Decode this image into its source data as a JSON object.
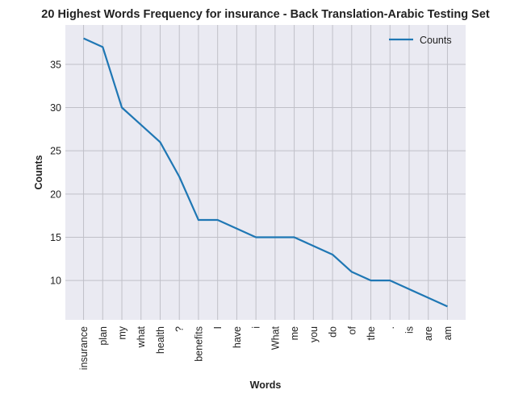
{
  "chart_data": {
    "type": "line",
    "title": "20 Highest Words Frequency for insurance - Back Translation-Arabic Testing Set",
    "xlabel": "Words",
    "ylabel": "Counts",
    "categories": [
      "insurance",
      "plan",
      "my",
      "what",
      "health",
      "?",
      "benefits",
      "I",
      "have",
      "i",
      "What",
      "me",
      "you",
      "do",
      "of",
      "the",
      ".",
      "is",
      "are",
      "am"
    ],
    "series": [
      {
        "name": "Counts",
        "values": [
          38,
          37,
          30,
          28,
          26,
          22,
          17,
          17,
          16,
          15,
          15,
          15,
          14,
          13,
          11,
          10,
          10,
          9,
          8,
          7
        ],
        "color": "#1f77b4"
      }
    ],
    "yticks": [
      10,
      15,
      20,
      25,
      30,
      35
    ],
    "ylim": [
      5.45,
      39.55
    ],
    "grid": true,
    "legend": "top-right",
    "background": "#eaeaf2",
    "grid_color": "#c0c0c8"
  }
}
